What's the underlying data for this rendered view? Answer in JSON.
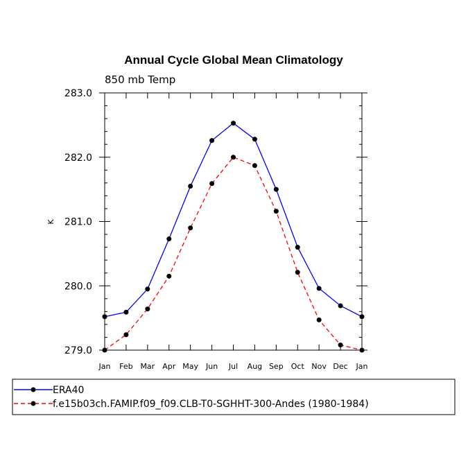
{
  "chart_data": {
    "type": "line",
    "title": "Annual Cycle Global Mean Climatology",
    "subtitle": "850 mb Temp",
    "xlabel": "",
    "ylabel": "K",
    "categories": [
      "Jan",
      "Feb",
      "Mar",
      "Apr",
      "May",
      "Jun",
      "Jul",
      "Aug",
      "Sep",
      "Oct",
      "Nov",
      "Dec",
      "Jan"
    ],
    "ylim": [
      279.0,
      283.0
    ],
    "yticks": [
      "279.0",
      "280.0",
      "281.0",
      "282.0",
      "283.0"
    ],
    "grid": false,
    "legend_position": "bottom",
    "series": [
      {
        "name": "ERA40",
        "color": "#0000ff",
        "dash": "solid",
        "values": [
          279.52,
          279.59,
          279.95,
          280.73,
          281.55,
          282.26,
          282.53,
          282.28,
          281.5,
          280.6,
          279.96,
          279.69,
          279.52
        ]
      },
      {
        "name": "f.e15b03ch.FAMIP.f09_f09.CLB-T0-SGHHT-300-Andes (1980-1984)",
        "color": "#ff0000",
        "dash": "dashed",
        "values": [
          279.0,
          279.24,
          279.64,
          280.15,
          280.9,
          281.59,
          282.0,
          281.87,
          281.16,
          280.21,
          279.47,
          279.08,
          279.0
        ]
      }
    ]
  }
}
